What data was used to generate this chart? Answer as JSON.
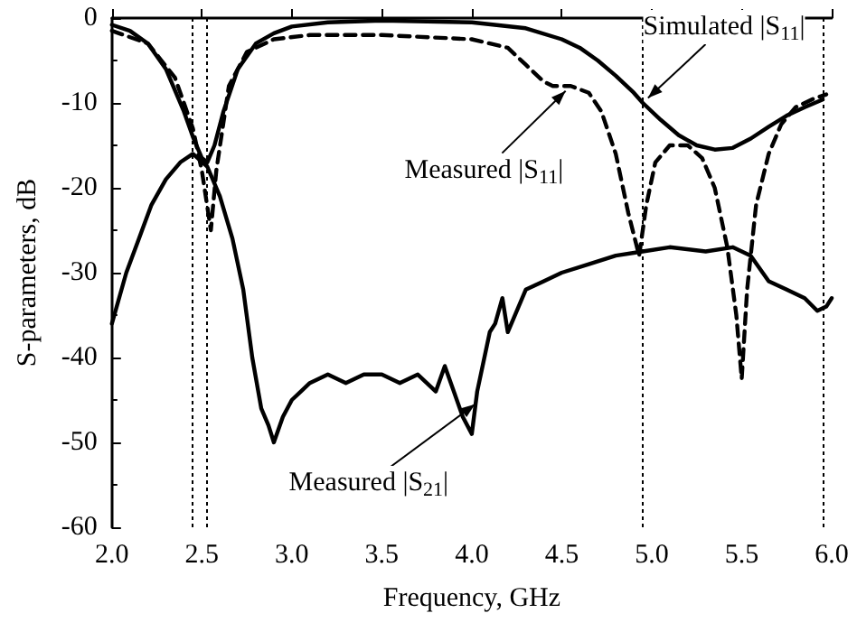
{
  "chart_data": {
    "type": "line",
    "xlabel": "Frequency, GHz",
    "ylabel": "S-parameters, dB",
    "xlim": [
      2,
      6
    ],
    "ylim": [
      -60,
      0
    ],
    "xticks": [
      {
        "value": 2,
        "label": "2.0"
      },
      {
        "value": 2.5,
        "label": "2.5"
      },
      {
        "value": 3,
        "label": "3.0"
      },
      {
        "value": 3.5,
        "label": "3.5"
      },
      {
        "value": 4,
        "label": "4.0"
      },
      {
        "value": 4.5,
        "label": "4.5"
      },
      {
        "value": 5,
        "label": "5.0"
      },
      {
        "value": 5.5,
        "label": "5.5"
      },
      {
        "value": 6,
        "label": "6.0"
      }
    ],
    "yticks": [
      -60,
      -50,
      -40,
      -30,
      -20,
      -10,
      0
    ],
    "grid": false,
    "marker": "none",
    "series": [
      {
        "color": "#000000",
        "line_style": "solid",
        "x": [
          2.0,
          2.1,
          2.2,
          2.3,
          2.4,
          2.45,
          2.5,
          2.53,
          2.57,
          2.62,
          2.7,
          2.8,
          2.9,
          3.0,
          3.2,
          3.5,
          4.0,
          4.3,
          4.5,
          4.6,
          4.7,
          4.8,
          4.9,
          4.95,
          5.05,
          5.15,
          5.25,
          5.35,
          5.45,
          5.55,
          5.65,
          5.75,
          5.85,
          5.95
        ],
        "values": [
          -0.8,
          -1.5,
          -3,
          -6,
          -11,
          -14,
          -16.5,
          -17,
          -15,
          -11,
          -6,
          -3,
          -1.8,
          -1,
          -0.5,
          -0.3,
          -0.5,
          -1.2,
          -2.5,
          -3.5,
          -5,
          -6.8,
          -8.8,
          -10,
          -12,
          -13.8,
          -15,
          -15.5,
          -15.3,
          -14.2,
          -12.8,
          -11.5,
          -10.5,
          -9.6
        ]
      },
      {
        "color": "#000000",
        "line_style": "dashed",
        "x": [
          2.0,
          2.2,
          2.35,
          2.45,
          2.5,
          2.55,
          2.58,
          2.65,
          2.75,
          2.9,
          3.1,
          3.5,
          4.0,
          4.2,
          4.3,
          4.4,
          4.45,
          4.55,
          4.65,
          4.72,
          4.8,
          4.87,
          4.93,
          4.97,
          5.02,
          5.1,
          5.2,
          5.28,
          5.35,
          5.42,
          5.47,
          5.5,
          5.53,
          5.58,
          5.65,
          5.72,
          5.8,
          5.9,
          5.97
        ],
        "values": [
          -1.5,
          -3,
          -7,
          -13,
          -18,
          -25,
          -18,
          -8,
          -4,
          -2.5,
          -2,
          -2,
          -2.5,
          -3.5,
          -5.5,
          -7.5,
          -8,
          -8,
          -8.8,
          -11,
          -16,
          -23,
          -28,
          -22,
          -17,
          -15,
          -15,
          -16.5,
          -20,
          -27,
          -35,
          -42.5,
          -32,
          -22,
          -16,
          -12.5,
          -10.5,
          -9.5,
          -9
        ]
      },
      {
        "color": "#000000",
        "line_style": "solid",
        "x": [
          2.0,
          2.08,
          2.15,
          2.22,
          2.3,
          2.38,
          2.45,
          2.53,
          2.6,
          2.67,
          2.73,
          2.78,
          2.83,
          2.87,
          2.9,
          2.95,
          3.0,
          3.05,
          3.1,
          3.2,
          3.3,
          3.4,
          3.5,
          3.6,
          3.7,
          3.8,
          3.85,
          3.9,
          3.95,
          4.0,
          4.03,
          4.07,
          4.1,
          4.13,
          4.17,
          4.2,
          4.3,
          4.4,
          4.5,
          4.65,
          4.8,
          4.95,
          5.1,
          5.3,
          5.45,
          5.55,
          5.65,
          5.75,
          5.85,
          5.92,
          5.97,
          6.0
        ],
        "values": [
          -36,
          -30,
          -26,
          -22,
          -19,
          -17,
          -16,
          -17.5,
          -21,
          -26,
          -32,
          -40,
          -46,
          -48,
          -50,
          -47,
          -45,
          -44,
          -43,
          -42,
          -43,
          -42,
          -42,
          -43,
          -42,
          -44,
          -41,
          -44,
          -47,
          -49,
          -44,
          -40,
          -37,
          -36,
          -33,
          -37,
          -32,
          -31,
          -30,
          -29,
          -28,
          -27.5,
          -27,
          -27.5,
          -27,
          -28,
          -31,
          -32,
          -33,
          -34.5,
          -34,
          -33
        ]
      }
    ],
    "ref_lines": [
      {
        "axis": "x",
        "value": 2.45,
        "color": "#000000",
        "line_style": "dotted"
      },
      {
        "axis": "x",
        "value": 2.53,
        "color": "#000000",
        "line_style": "dotted"
      },
      {
        "axis": "x",
        "value": 4.95,
        "color": "#000000",
        "line_style": "dotted"
      },
      {
        "axis": "x",
        "value": 5.95,
        "color": "#000000",
        "line_style": "dotted"
      }
    ],
    "annotations": [
      {
        "text": "Simulated |S$_{11}$|",
        "x": 4.95,
        "y": -10
      },
      {
        "text": "Measured |S$_{11}$|",
        "x": 4.55,
        "y": -8
      },
      {
        "text": "Measured |S$_{21}$|",
        "x": 4.05,
        "y": -45
      }
    ]
  }
}
